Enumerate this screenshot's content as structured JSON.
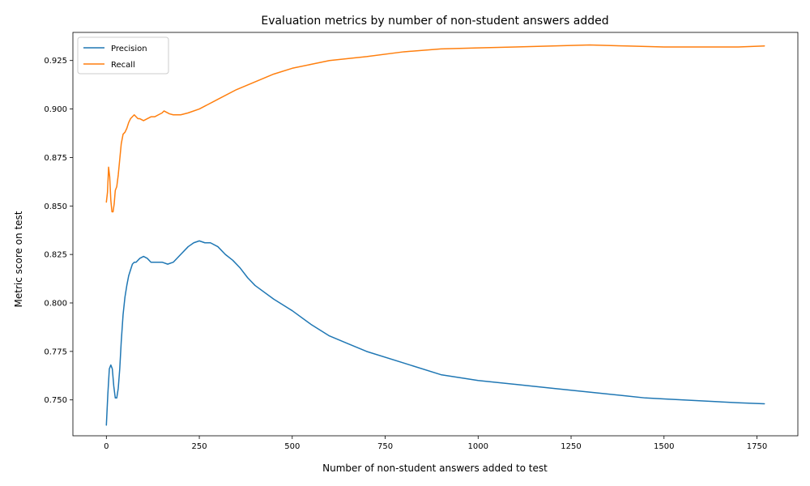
{
  "chart_data": {
    "type": "line",
    "title": "Evaluation metrics by number of non-student answers added",
    "xlabel": "Number of non-student answers added to test",
    "ylabel": "Metric score on test",
    "xlim": [
      -90,
      1860
    ],
    "ylim": [
      0.7315,
      0.9395
    ],
    "xticks": [
      0,
      250,
      500,
      750,
      1000,
      1250,
      1500,
      1750
    ],
    "xtick_labels": [
      "0",
      "250",
      "500",
      "750",
      "1000",
      "1250",
      "1500",
      "1750"
    ],
    "yticks": [
      0.75,
      0.775,
      0.8,
      0.825,
      0.85,
      0.875,
      0.9,
      0.925
    ],
    "ytick_labels": [
      "0.750",
      "0.775",
      "0.800",
      "0.825",
      "0.850",
      "0.875",
      "0.900",
      "0.925"
    ],
    "grid": false,
    "legend_position": "top-left",
    "series": [
      {
        "name": "Precision",
        "color": "#1f77b4",
        "x": [
          0,
          4,
          8,
          12,
          16,
          20,
          24,
          28,
          32,
          36,
          40,
          45,
          50,
          55,
          60,
          65,
          70,
          75,
          80,
          90,
          100,
          110,
          120,
          130,
          140,
          150,
          165,
          180,
          200,
          220,
          235,
          250,
          265,
          280,
          300,
          320,
          340,
          360,
          380,
          400,
          450,
          500,
          550,
          600,
          650,
          700,
          800,
          900,
          1000,
          1100,
          1200,
          1300,
          1400,
          1450,
          1500,
          1600,
          1700,
          1770
        ],
        "y": [
          0.737,
          0.753,
          0.766,
          0.768,
          0.766,
          0.757,
          0.751,
          0.751,
          0.756,
          0.766,
          0.78,
          0.794,
          0.803,
          0.809,
          0.814,
          0.817,
          0.82,
          0.821,
          0.821,
          0.823,
          0.824,
          0.823,
          0.821,
          0.821,
          0.821,
          0.821,
          0.82,
          0.821,
          0.825,
          0.829,
          0.831,
          0.832,
          0.831,
          0.831,
          0.829,
          0.825,
          0.822,
          0.818,
          0.813,
          0.809,
          0.802,
          0.796,
          0.789,
          0.783,
          0.779,
          0.775,
          0.769,
          0.763,
          0.76,
          0.758,
          0.756,
          0.754,
          0.752,
          0.751,
          0.7505,
          0.7495,
          0.7485,
          0.748
        ]
      },
      {
        "name": "Recall",
        "color": "#ff7f0e",
        "x": [
          0,
          3,
          6,
          9,
          12,
          15,
          18,
          21,
          24,
          28,
          32,
          36,
          40,
          45,
          50,
          55,
          60,
          65,
          70,
          75,
          80,
          85,
          90,
          100,
          110,
          120,
          130,
          140,
          150,
          155,
          160,
          170,
          180,
          200,
          220,
          250,
          280,
          300,
          350,
          400,
          450,
          500,
          550,
          600,
          700,
          800,
          900,
          1000,
          1100,
          1200,
          1300,
          1400,
          1500,
          1600,
          1700,
          1770
        ],
        "y": [
          0.852,
          0.857,
          0.87,
          0.865,
          0.853,
          0.847,
          0.847,
          0.851,
          0.858,
          0.86,
          0.866,
          0.874,
          0.882,
          0.887,
          0.888,
          0.89,
          0.893,
          0.895,
          0.896,
          0.897,
          0.896,
          0.895,
          0.895,
          0.894,
          0.895,
          0.896,
          0.896,
          0.897,
          0.898,
          0.899,
          0.8985,
          0.8975,
          0.897,
          0.897,
          0.898,
          0.9,
          0.903,
          0.905,
          0.91,
          0.914,
          0.918,
          0.921,
          0.923,
          0.925,
          0.927,
          0.9295,
          0.931,
          0.9315,
          0.932,
          0.9325,
          0.933,
          0.9325,
          0.932,
          0.932,
          0.932,
          0.9325
        ]
      }
    ]
  }
}
